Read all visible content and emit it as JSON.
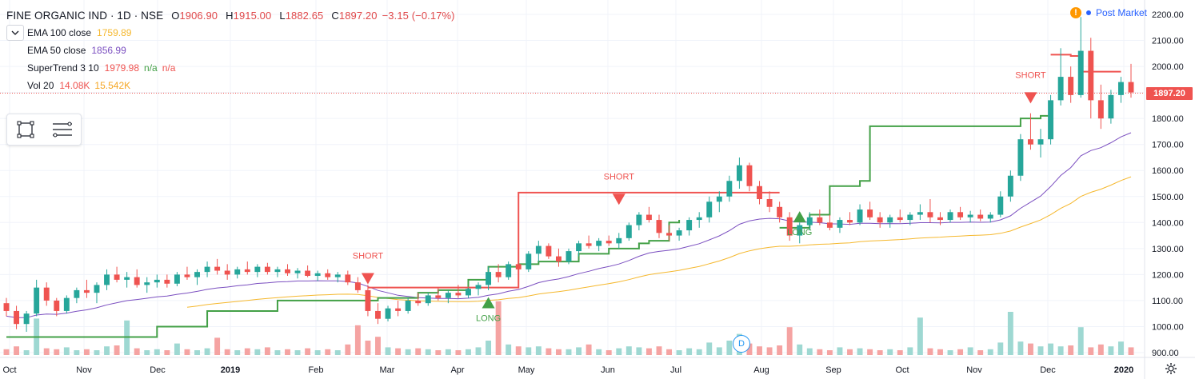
{
  "header": {
    "symbol": "FINE ORGANIC IND · 1D · NSE",
    "open_label": "O",
    "open": "1906.90",
    "high_label": "H",
    "high": "1915.00",
    "low_label": "L",
    "low": "1882.65",
    "close_label": "C",
    "close": "1897.20",
    "change": "−3.15 (−0.17%)"
  },
  "indicators": {
    "ema100": {
      "name": "EMA 100 close",
      "value": "1759.89"
    },
    "ema50": {
      "name": "EMA 50 close",
      "value": "1856.99"
    },
    "supertrend": {
      "name": "SuperTrend 3 10",
      "value": "1979.98",
      "extra1": "n/a",
      "extra2": "n/a"
    },
    "volume": {
      "name": "Vol 20",
      "value1": "14.08K",
      "value2": "15.542K"
    }
  },
  "market_status": {
    "label": "Post Market",
    "warning_symbol": "!"
  },
  "price_tag": "1897.20",
  "dividend_badge": "D",
  "colors": {
    "up": "#26a69a",
    "down": "#ef5350",
    "ema100": "#f5b82e",
    "ema50": "#7b4fc0",
    "supertrend_up": "#43a047",
    "supertrend_down": "#ef5350",
    "vol_up": "#9ed8d2",
    "vol_down": "#f5a3a2"
  },
  "chart_data": {
    "type": "candlestick",
    "y_axis": {
      "side": "right",
      "ylim": [
        880,
        2230
      ],
      "ticks": [
        "2200.00",
        "2100.00",
        "2000.00",
        "1900.00",
        "1800.00",
        "1700.00",
        "1600.00",
        "1500.00",
        "1400.00",
        "1300.00",
        "1200.00",
        "1100.00",
        "1000.00",
        "900.00"
      ]
    },
    "x_axis": {
      "labels": [
        "Oct",
        "Nov",
        "Dec",
        "2019",
        "Feb",
        "Mar",
        "Apr",
        "May",
        "Jun",
        "Jul",
        "Aug",
        "Sep",
        "Oct",
        "Nov",
        "Dec",
        "2020"
      ]
    },
    "last_price": 1897.2,
    "supertrend_up": [
      [
        0,
        960
      ],
      [
        10,
        960
      ],
      [
        15,
        1000
      ],
      [
        20,
        1060
      ],
      [
        27,
        1100
      ],
      [
        35,
        1100
      ],
      [
        37,
        1110
      ],
      [
        40,
        1110
      ],
      [
        41,
        1130
      ],
      [
        43,
        1140
      ],
      [
        46,
        1180
      ],
      [
        48,
        1230
      ],
      [
        51,
        1240
      ],
      [
        53,
        1250
      ],
      [
        57,
        1280
      ],
      [
        60,
        1300
      ],
      [
        63,
        1320
      ],
      [
        64,
        1330
      ],
      [
        66,
        1400
      ],
      [
        67,
        1410
      ]
    ],
    "supertrend_down": [
      [
        36,
        1150
      ],
      [
        47,
        1150
      ],
      [
        50,
        1150
      ],
      [
        51,
        1515
      ],
      [
        75,
        1515
      ],
      [
        77,
        1515
      ]
    ],
    "supertrend_up_late": [
      [
        77,
        1380
      ],
      [
        80,
        1430
      ],
      [
        82,
        1540
      ],
      [
        85,
        1560
      ],
      [
        86,
        1770
      ],
      [
        100,
        1770
      ],
      [
        101,
        1800
      ],
      [
        103,
        1810
      ],
      [
        104,
        1810
      ]
    ],
    "supertrend_down_late": [
      [
        104,
        2045
      ],
      [
        106,
        2040
      ],
      [
        107,
        1980
      ],
      [
        111,
        1980
      ]
    ],
    "signals": [
      {
        "type": "SHORT",
        "index": 36,
        "price": 1175
      },
      {
        "type": "LONG",
        "index": 48,
        "price": 1095
      },
      {
        "type": "SHORT",
        "index": 61,
        "price": 1480
      },
      {
        "type": "LONG",
        "index": 79,
        "price": 1425
      },
      {
        "type": "SHORT",
        "index": 102,
        "price": 1870
      }
    ],
    "signal_labels": {
      "short": "SHORT",
      "long": "LONG"
    },
    "candles": [
      {
        "o": 1090,
        "h": 1110,
        "l": 1040,
        "c": 1060,
        "v": 0.6
      },
      {
        "o": 1060,
        "h": 1080,
        "l": 990,
        "c": 1010,
        "v": 0.9
      },
      {
        "o": 1010,
        "h": 1060,
        "l": 980,
        "c": 1050,
        "v": 0.5
      },
      {
        "o": 1050,
        "h": 1180,
        "l": 1040,
        "c": 1150,
        "v": 3.8
      },
      {
        "o": 1150,
        "h": 1170,
        "l": 1080,
        "c": 1100,
        "v": 0.7
      },
      {
        "o": 1100,
        "h": 1110,
        "l": 1040,
        "c": 1060,
        "v": 0.6
      },
      {
        "o": 1060,
        "h": 1120,
        "l": 1050,
        "c": 1110,
        "v": 0.8
      },
      {
        "o": 1110,
        "h": 1150,
        "l": 1090,
        "c": 1140,
        "v": 0.5
      },
      {
        "o": 1140,
        "h": 1180,
        "l": 1110,
        "c": 1130,
        "v": 0.6
      },
      {
        "o": 1130,
        "h": 1170,
        "l": 1090,
        "c": 1160,
        "v": 0.5
      },
      {
        "o": 1160,
        "h": 1220,
        "l": 1140,
        "c": 1200,
        "v": 0.9
      },
      {
        "o": 1200,
        "h": 1230,
        "l": 1170,
        "c": 1180,
        "v": 1.0
      },
      {
        "o": 1180,
        "h": 1210,
        "l": 1150,
        "c": 1190,
        "v": 3.6
      },
      {
        "o": 1190,
        "h": 1220,
        "l": 1150,
        "c": 1160,
        "v": 0.7
      },
      {
        "o": 1160,
        "h": 1190,
        "l": 1130,
        "c": 1170,
        "v": 0.5
      },
      {
        "o": 1170,
        "h": 1200,
        "l": 1150,
        "c": 1180,
        "v": 0.6
      },
      {
        "o": 1180,
        "h": 1200,
        "l": 1150,
        "c": 1165,
        "v": 0.5
      },
      {
        "o": 1165,
        "h": 1210,
        "l": 1155,
        "c": 1200,
        "v": 1.2
      },
      {
        "o": 1200,
        "h": 1230,
        "l": 1180,
        "c": 1190,
        "v": 0.6
      },
      {
        "o": 1190,
        "h": 1220,
        "l": 1160,
        "c": 1210,
        "v": 0.5
      },
      {
        "o": 1210,
        "h": 1250,
        "l": 1190,
        "c": 1230,
        "v": 0.7
      },
      {
        "o": 1230,
        "h": 1260,
        "l": 1200,
        "c": 1215,
        "v": 1.8
      },
      {
        "o": 1215,
        "h": 1240,
        "l": 1180,
        "c": 1200,
        "v": 0.6
      },
      {
        "o": 1200,
        "h": 1230,
        "l": 1185,
        "c": 1220,
        "v": 0.5
      },
      {
        "o": 1220,
        "h": 1250,
        "l": 1200,
        "c": 1210,
        "v": 0.7
      },
      {
        "o": 1210,
        "h": 1240,
        "l": 1190,
        "c": 1230,
        "v": 0.6
      },
      {
        "o": 1230,
        "h": 1245,
        "l": 1200,
        "c": 1210,
        "v": 0.8
      },
      {
        "o": 1210,
        "h": 1230,
        "l": 1190,
        "c": 1220,
        "v": 0.5
      },
      {
        "o": 1220,
        "h": 1240,
        "l": 1195,
        "c": 1205,
        "v": 0.6
      },
      {
        "o": 1205,
        "h": 1225,
        "l": 1185,
        "c": 1215,
        "v": 0.5
      },
      {
        "o": 1215,
        "h": 1235,
        "l": 1190,
        "c": 1195,
        "v": 0.7
      },
      {
        "o": 1195,
        "h": 1215,
        "l": 1175,
        "c": 1205,
        "v": 0.5
      },
      {
        "o": 1205,
        "h": 1220,
        "l": 1180,
        "c": 1190,
        "v": 0.6
      },
      {
        "o": 1190,
        "h": 1210,
        "l": 1170,
        "c": 1200,
        "v": 0.5
      },
      {
        "o": 1200,
        "h": 1215,
        "l": 1160,
        "c": 1170,
        "v": 1.1
      },
      {
        "o": 1170,
        "h": 1190,
        "l": 1130,
        "c": 1140,
        "v": 3.1
      },
      {
        "o": 1140,
        "h": 1160,
        "l": 1040,
        "c": 1060,
        "v": 1.5
      },
      {
        "o": 1060,
        "h": 1090,
        "l": 1010,
        "c": 1030,
        "v": 1.9
      },
      {
        "o": 1030,
        "h": 1080,
        "l": 1020,
        "c": 1070,
        "v": 0.8
      },
      {
        "o": 1070,
        "h": 1100,
        "l": 1040,
        "c": 1060,
        "v": 0.7
      },
      {
        "o": 1060,
        "h": 1110,
        "l": 1050,
        "c": 1100,
        "v": 0.6
      },
      {
        "o": 1100,
        "h": 1130,
        "l": 1080,
        "c": 1090,
        "v": 0.7
      },
      {
        "o": 1090,
        "h": 1130,
        "l": 1080,
        "c": 1120,
        "v": 0.6
      },
      {
        "o": 1120,
        "h": 1150,
        "l": 1100,
        "c": 1110,
        "v": 0.5
      },
      {
        "o": 1110,
        "h": 1140,
        "l": 1090,
        "c": 1130,
        "v": 0.6
      },
      {
        "o": 1130,
        "h": 1160,
        "l": 1110,
        "c": 1120,
        "v": 0.5
      },
      {
        "o": 1120,
        "h": 1150,
        "l": 1110,
        "c": 1145,
        "v": 0.6
      },
      {
        "o": 1145,
        "h": 1170,
        "l": 1120,
        "c": 1160,
        "v": 0.8
      },
      {
        "o": 1160,
        "h": 1230,
        "l": 1140,
        "c": 1210,
        "v": 1.5
      },
      {
        "o": 1210,
        "h": 1240,
        "l": 1170,
        "c": 1190,
        "v": 5.6
      },
      {
        "o": 1190,
        "h": 1250,
        "l": 1180,
        "c": 1240,
        "v": 1.1
      },
      {
        "o": 1240,
        "h": 1270,
        "l": 1200,
        "c": 1220,
        "v": 0.9
      },
      {
        "o": 1220,
        "h": 1290,
        "l": 1210,
        "c": 1280,
        "v": 0.8
      },
      {
        "o": 1280,
        "h": 1330,
        "l": 1250,
        "c": 1310,
        "v": 0.9
      },
      {
        "o": 1310,
        "h": 1320,
        "l": 1260,
        "c": 1270,
        "v": 0.7
      },
      {
        "o": 1270,
        "h": 1300,
        "l": 1230,
        "c": 1250,
        "v": 0.6
      },
      {
        "o": 1250,
        "h": 1300,
        "l": 1240,
        "c": 1290,
        "v": 0.6
      },
      {
        "o": 1290,
        "h": 1330,
        "l": 1270,
        "c": 1320,
        "v": 0.8
      },
      {
        "o": 1320,
        "h": 1350,
        "l": 1300,
        "c": 1310,
        "v": 1.1
      },
      {
        "o": 1310,
        "h": 1340,
        "l": 1290,
        "c": 1330,
        "v": 0.6
      },
      {
        "o": 1330,
        "h": 1350,
        "l": 1310,
        "c": 1320,
        "v": 0.5
      },
      {
        "o": 1320,
        "h": 1360,
        "l": 1300,
        "c": 1340,
        "v": 0.7
      },
      {
        "o": 1340,
        "h": 1400,
        "l": 1330,
        "c": 1390,
        "v": 0.9
      },
      {
        "o": 1390,
        "h": 1440,
        "l": 1370,
        "c": 1430,
        "v": 0.8
      },
      {
        "o": 1430,
        "h": 1460,
        "l": 1400,
        "c": 1410,
        "v": 0.7
      },
      {
        "o": 1410,
        "h": 1430,
        "l": 1340,
        "c": 1360,
        "v": 0.9
      },
      {
        "o": 1360,
        "h": 1390,
        "l": 1330,
        "c": 1350,
        "v": 0.6
      },
      {
        "o": 1350,
        "h": 1380,
        "l": 1330,
        "c": 1370,
        "v": 0.5
      },
      {
        "o": 1370,
        "h": 1420,
        "l": 1350,
        "c": 1410,
        "v": 0.7
      },
      {
        "o": 1410,
        "h": 1440,
        "l": 1380,
        "c": 1420,
        "v": 0.6
      },
      {
        "o": 1420,
        "h": 1500,
        "l": 1400,
        "c": 1480,
        "v": 1.3
      },
      {
        "o": 1480,
        "h": 1520,
        "l": 1440,
        "c": 1500,
        "v": 0.8
      },
      {
        "o": 1500,
        "h": 1580,
        "l": 1480,
        "c": 1560,
        "v": 1.5
      },
      {
        "o": 1560,
        "h": 1650,
        "l": 1530,
        "c": 1620,
        "v": 2.2
      },
      {
        "o": 1620,
        "h": 1630,
        "l": 1520,
        "c": 1540,
        "v": 1.2
      },
      {
        "o": 1540,
        "h": 1560,
        "l": 1470,
        "c": 1490,
        "v": 0.9
      },
      {
        "o": 1490,
        "h": 1520,
        "l": 1440,
        "c": 1460,
        "v": 0.8
      },
      {
        "o": 1460,
        "h": 1480,
        "l": 1400,
        "c": 1420,
        "v": 1.0
      },
      {
        "o": 1420,
        "h": 1440,
        "l": 1330,
        "c": 1350,
        "v": 2.9
      },
      {
        "o": 1350,
        "h": 1400,
        "l": 1320,
        "c": 1390,
        "v": 1.1
      },
      {
        "o": 1390,
        "h": 1440,
        "l": 1370,
        "c": 1420,
        "v": 0.7
      },
      {
        "o": 1420,
        "h": 1450,
        "l": 1390,
        "c": 1400,
        "v": 0.6
      },
      {
        "o": 1400,
        "h": 1430,
        "l": 1370,
        "c": 1380,
        "v": 0.5
      },
      {
        "o": 1380,
        "h": 1420,
        "l": 1360,
        "c": 1410,
        "v": 0.8
      },
      {
        "o": 1410,
        "h": 1440,
        "l": 1390,
        "c": 1400,
        "v": 0.6
      },
      {
        "o": 1400,
        "h": 1470,
        "l": 1390,
        "c": 1450,
        "v": 0.7
      },
      {
        "o": 1450,
        "h": 1480,
        "l": 1410,
        "c": 1420,
        "v": 0.6
      },
      {
        "o": 1420,
        "h": 1440,
        "l": 1380,
        "c": 1400,
        "v": 0.5
      },
      {
        "o": 1400,
        "h": 1430,
        "l": 1380,
        "c": 1420,
        "v": 0.6
      },
      {
        "o": 1420,
        "h": 1450,
        "l": 1400,
        "c": 1410,
        "v": 0.5
      },
      {
        "o": 1410,
        "h": 1440,
        "l": 1390,
        "c": 1430,
        "v": 0.8
      },
      {
        "o": 1430,
        "h": 1470,
        "l": 1410,
        "c": 1440,
        "v": 3.9
      },
      {
        "o": 1440,
        "h": 1490,
        "l": 1400,
        "c": 1420,
        "v": 0.7
      },
      {
        "o": 1420,
        "h": 1440,
        "l": 1390,
        "c": 1410,
        "v": 0.6
      },
      {
        "o": 1410,
        "h": 1450,
        "l": 1400,
        "c": 1440,
        "v": 0.5
      },
      {
        "o": 1440,
        "h": 1460,
        "l": 1410,
        "c": 1420,
        "v": 0.6
      },
      {
        "o": 1420,
        "h": 1445,
        "l": 1400,
        "c": 1430,
        "v": 0.8
      },
      {
        "o": 1430,
        "h": 1450,
        "l": 1405,
        "c": 1415,
        "v": 0.5
      },
      {
        "o": 1415,
        "h": 1440,
        "l": 1400,
        "c": 1430,
        "v": 0.6
      },
      {
        "o": 1430,
        "h": 1520,
        "l": 1420,
        "c": 1500,
        "v": 1.3
      },
      {
        "o": 1500,
        "h": 1600,
        "l": 1480,
        "c": 1580,
        "v": 4.5
      },
      {
        "o": 1580,
        "h": 1740,
        "l": 1560,
        "c": 1720,
        "v": 1.4
      },
      {
        "o": 1720,
        "h": 1820,
        "l": 1680,
        "c": 1700,
        "v": 1.2
      },
      {
        "o": 1700,
        "h": 1760,
        "l": 1650,
        "c": 1720,
        "v": 0.9
      },
      {
        "o": 1720,
        "h": 1890,
        "l": 1700,
        "c": 1870,
        "v": 1.2
      },
      {
        "o": 1870,
        "h": 2070,
        "l": 1850,
        "c": 1960,
        "v": 0.9
      },
      {
        "o": 1960,
        "h": 2000,
        "l": 1860,
        "c": 1890,
        "v": 1.0
      },
      {
        "o": 1890,
        "h": 2190,
        "l": 1880,
        "c": 2060,
        "v": 2.9
      },
      {
        "o": 2060,
        "h": 2110,
        "l": 1800,
        "c": 1870,
        "v": 0.8
      },
      {
        "o": 1870,
        "h": 1930,
        "l": 1760,
        "c": 1800,
        "v": 1.1
      },
      {
        "o": 1800,
        "h": 1910,
        "l": 1780,
        "c": 1890,
        "v": 0.9
      },
      {
        "o": 1890,
        "h": 1960,
        "l": 1860,
        "c": 1940,
        "v": 1.4
      },
      {
        "o": 1940,
        "h": 2010,
        "l": 1880,
        "c": 1900,
        "v": 0.8
      }
    ]
  }
}
